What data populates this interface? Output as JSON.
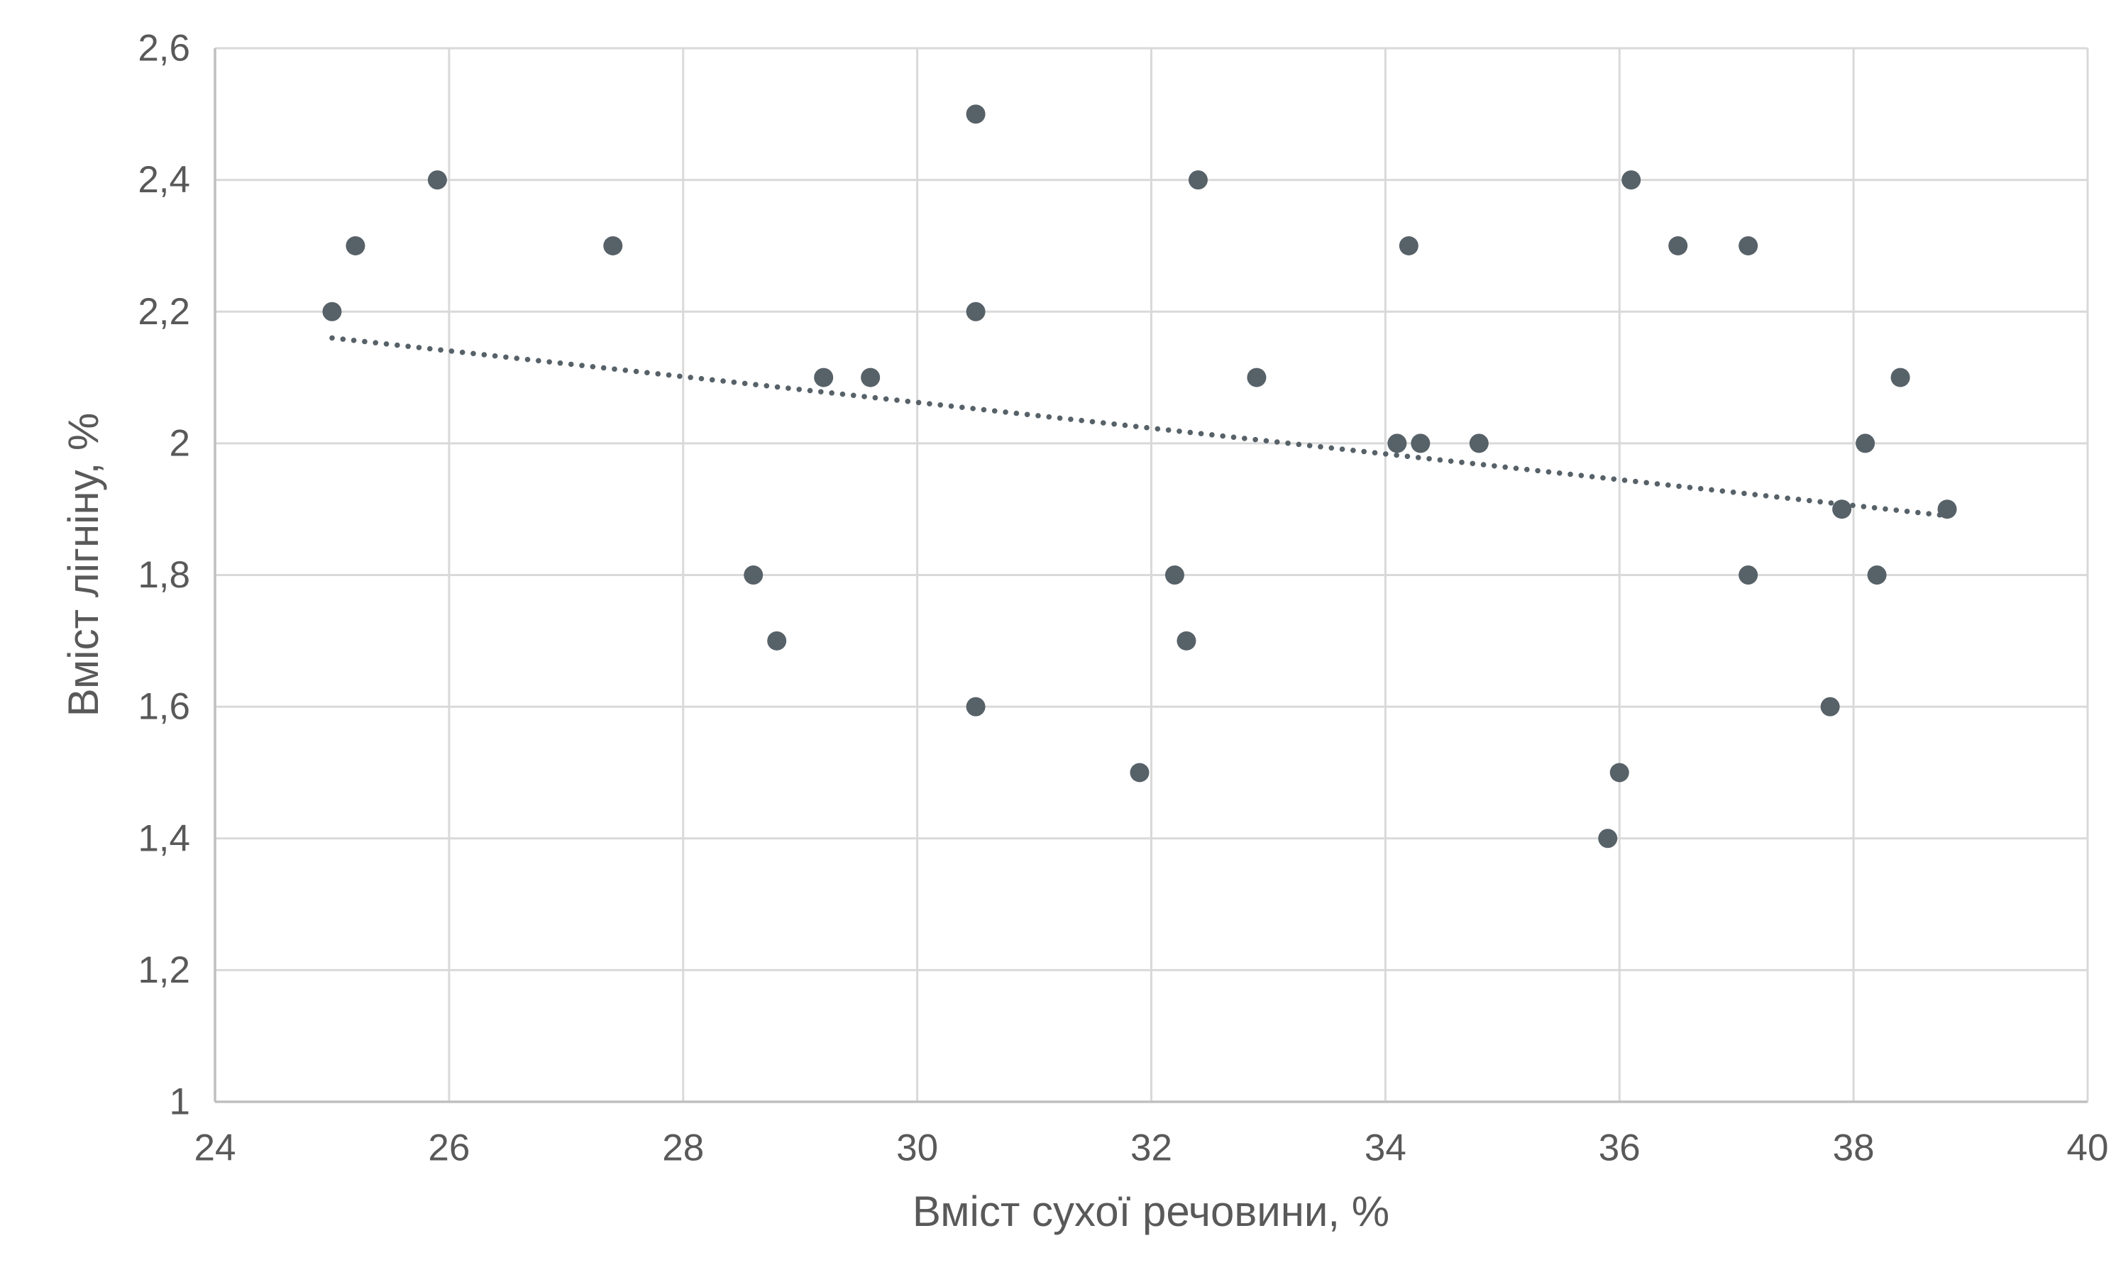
{
  "chart_data": {
    "type": "scatter",
    "title": "",
    "xlabel": "Вміст сухої речовини, %",
    "ylabel": "Вміст лігніну, %",
    "xlim": [
      24,
      40
    ],
    "ylim": [
      1.0,
      2.6
    ],
    "x_ticks": [
      24,
      26,
      28,
      30,
      32,
      34,
      36,
      38,
      40
    ],
    "x_tick_labels": [
      "24",
      "26",
      "28",
      "30",
      "32",
      "34",
      "36",
      "38",
      "40"
    ],
    "y_ticks": [
      1.0,
      1.2,
      1.4,
      1.6,
      1.8,
      2.0,
      2.2,
      2.4,
      2.6
    ],
    "y_tick_labels": [
      "1",
      "1,2",
      "1,4",
      "1,6",
      "1,8",
      "2",
      "2,2",
      "2,4",
      "2,6"
    ],
    "grid": true,
    "legend": false,
    "points": [
      [
        25.0,
        2.2
      ],
      [
        25.2,
        2.3
      ],
      [
        25.9,
        2.4
      ],
      [
        27.4,
        2.3
      ],
      [
        28.6,
        1.8
      ],
      [
        28.8,
        1.7
      ],
      [
        29.2,
        2.1
      ],
      [
        29.6,
        2.1
      ],
      [
        30.5,
        2.5
      ],
      [
        30.5,
        2.2
      ],
      [
        30.5,
        1.6
      ],
      [
        31.9,
        1.5
      ],
      [
        32.2,
        1.8
      ],
      [
        32.3,
        1.7
      ],
      [
        32.4,
        2.4
      ],
      [
        32.9,
        2.1
      ],
      [
        34.1,
        2.0
      ],
      [
        34.2,
        2.3
      ],
      [
        34.3,
        2.0
      ],
      [
        34.8,
        2.0
      ],
      [
        35.9,
        1.4
      ],
      [
        36.0,
        1.5
      ],
      [
        36.1,
        2.4
      ],
      [
        36.5,
        2.3
      ],
      [
        37.1,
        2.3
      ],
      [
        37.1,
        1.8
      ],
      [
        37.8,
        1.6
      ],
      [
        37.9,
        1.9
      ],
      [
        38.1,
        2.0
      ],
      [
        38.2,
        1.8
      ],
      [
        38.4,
        2.1
      ],
      [
        38.8,
        1.9
      ]
    ],
    "trendline": {
      "style": "dotted",
      "x_start": 25.0,
      "y_start": 2.16,
      "x_end": 38.8,
      "y_end": 1.89
    },
    "colors": {
      "marker": "#576168",
      "trendline": "#576168",
      "gridline": "#d9d9d9",
      "axis_line": "#bfbfbf",
      "tick_label": "#595959",
      "axis_title": "#595959",
      "background": "#ffffff"
    }
  }
}
